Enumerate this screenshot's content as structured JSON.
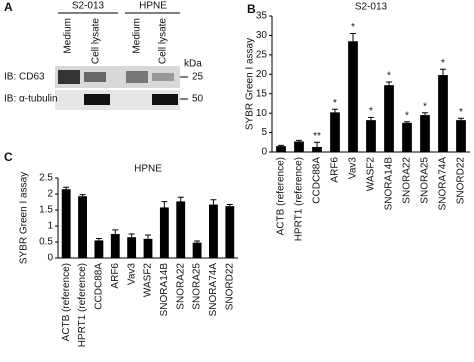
{
  "blot": {
    "panel_label": "A",
    "groups": [
      "S2-013",
      "HPNE"
    ],
    "lanes": [
      "Medium",
      "Cell lysate",
      "Medium",
      "Cell lysate"
    ],
    "unit": "kDa",
    "rows": [
      {
        "label": "IB: CD63",
        "marker": "25"
      },
      {
        "label": "IB: α-tubulin",
        "marker": "50"
      }
    ]
  },
  "chart_data": [
    {
      "type": "bar",
      "panel_label": "B",
      "title": "S2-013",
      "y_label": "SYBR Green I assay",
      "categories": [
        "ACTB (reference)",
        "HPRT1 (reference)",
        "CCDC88A",
        "ARF6",
        "Vav3",
        "WASF2",
        "SNORA14B",
        "SNORA22",
        "SNORA25",
        "SNORA74A",
        "SNORD22"
      ],
      "values": [
        1.5,
        2.7,
        1.3,
        10.2,
        28.5,
        8.2,
        17.2,
        7.5,
        9.5,
        19.8,
        8.2
      ],
      "errors": [
        0.2,
        0.3,
        1.2,
        0.8,
        2.0,
        0.7,
        0.8,
        0.3,
        0.6,
        1.5,
        0.5
      ],
      "annotations": [
        null,
        null,
        "**",
        "*",
        "*",
        "*",
        "*",
        "*",
        "*",
        "*",
        "*"
      ],
      "color": "#000000",
      "ylim": [
        0,
        35
      ],
      "yticks": [
        0,
        5,
        10,
        15,
        20,
        25,
        30,
        35
      ],
      "grid": false
    },
    {
      "type": "bar",
      "panel_label": "C",
      "title": "HPNE",
      "y_label": "SYBR Green I assay",
      "categories": [
        "ACTB (reference)",
        "HPRT1 (reference)",
        "CCDC88A",
        "ARF6",
        "Vav3",
        "WASF2",
        "SNORA14B",
        "SNORA22",
        "SNORA25",
        "SNORA74A",
        "SNORD22"
      ],
      "values": [
        2.15,
        1.93,
        0.55,
        0.75,
        0.65,
        0.6,
        1.58,
        1.77,
        0.48,
        1.67,
        1.62
      ],
      "errors": [
        0.06,
        0.05,
        0.06,
        0.13,
        0.1,
        0.12,
        0.18,
        0.13,
        0.05,
        0.15,
        0.05
      ],
      "color": "#000000",
      "ylim": [
        0,
        2.5
      ],
      "yticks": [
        0,
        0.5,
        1,
        1.5,
        2,
        2.5
      ],
      "grid": false
    }
  ]
}
